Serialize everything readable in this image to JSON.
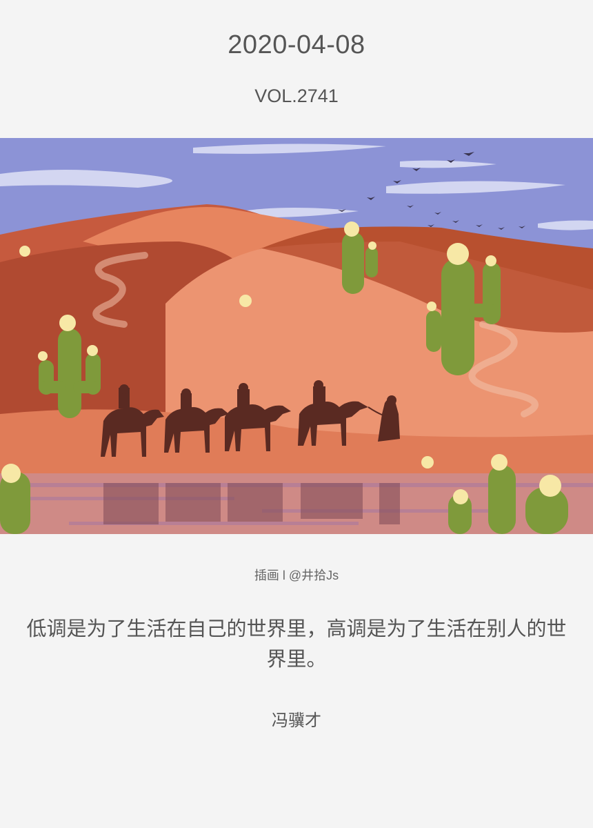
{
  "header": {
    "date": "2020-04-08",
    "volume": "VOL.2741"
  },
  "illustration": {
    "subject": "desert-camel-caravan-illustration",
    "credit": "插画 l @井拾Js"
  },
  "quote": {
    "text": "低调是为了生活在自己的世界里，高调是为了生活在别人的世界里。",
    "author": "冯骥才"
  },
  "colors": {
    "background": "#f4f4f4",
    "text": "#555555",
    "sky": "#8c93d6",
    "dune_light": "#e88e6c",
    "dune_dark": "#b44a32",
    "cactus": "#7f9a3b",
    "caravan": "#5a2a22"
  }
}
